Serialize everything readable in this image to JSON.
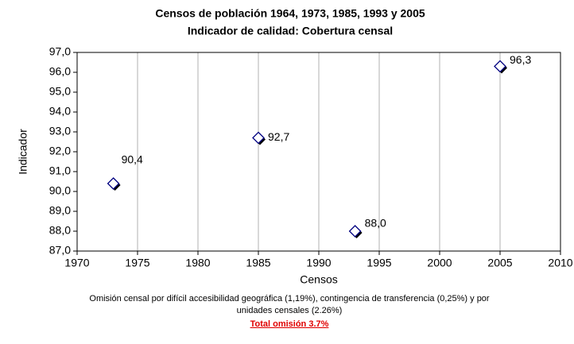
{
  "chart_data": {
    "type": "scatter",
    "title": "Censos de población 1964, 1973, 1985, 1993 y 2005",
    "subtitle": "Indicador de calidad: Cobertura censal",
    "x_label": "Censos",
    "y_label": "Indicador",
    "x": [
      1973,
      1985,
      1993,
      2005
    ],
    "values": [
      90.4,
      92.7,
      88.0,
      96.3
    ],
    "value_labels": [
      "90,4",
      "92,7",
      "88,0",
      "96,3"
    ],
    "color": "#000080",
    "xlim": [
      1970,
      2010
    ],
    "xticks": [
      1970,
      1975,
      1980,
      1985,
      1990,
      1995,
      2000,
      2005,
      2010
    ],
    "ylim": [
      87,
      97
    ],
    "yticks": [
      {
        "value": 87,
        "label": "87,0"
      },
      {
        "value": 88,
        "label": "88,0"
      },
      {
        "value": 89,
        "label": "89,0"
      },
      {
        "value": 90,
        "label": "90,0"
      },
      {
        "value": 91,
        "label": "91,0"
      },
      {
        "value": 92,
        "label": "92,0"
      },
      {
        "value": 93,
        "label": "93,0"
      },
      {
        "value": 94,
        "label": "94,0"
      },
      {
        "value": 95,
        "label": "95,0"
      },
      {
        "value": 96,
        "label": "96,0"
      },
      {
        "value": 97,
        "label": "97,0"
      }
    ],
    "grid": true,
    "notes": [
      "Omisión censal por difícil accesibilidad geográfica (1,19%), contingencia de transferencia (0,25%) y por",
      "unidades censales (2.26%)"
    ],
    "total_note": "Total omisión 3.7%"
  }
}
